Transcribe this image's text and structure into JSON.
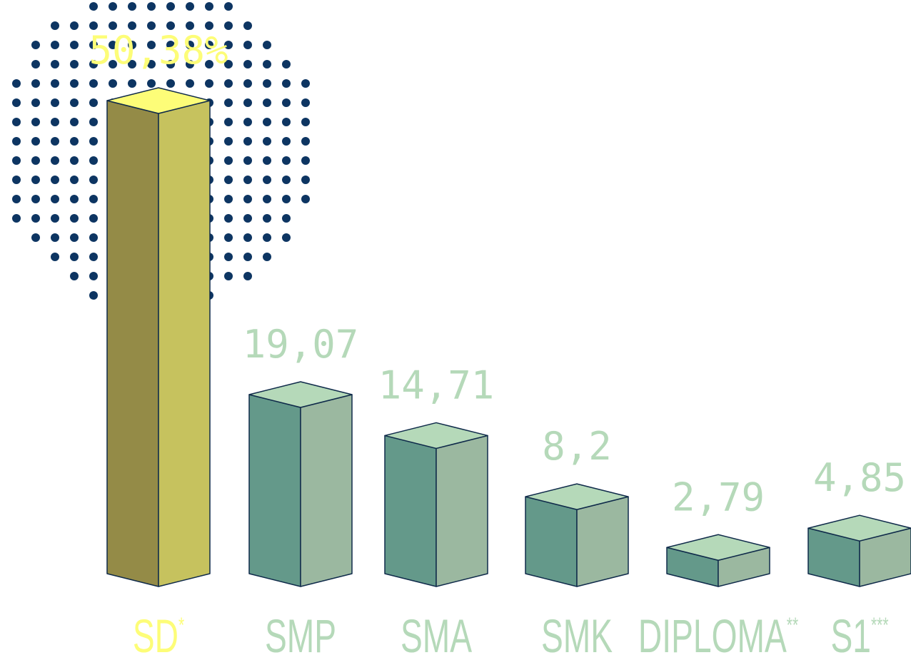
{
  "chart_data": {
    "type": "bar",
    "categories": [
      "SD",
      "SMP",
      "SMA",
      "SMK",
      "DIPLOMA",
      "S1"
    ],
    "category_marks": [
      "*",
      "",
      "",
      "",
      "**",
      "***"
    ],
    "values": [
      50.38,
      19.07,
      14.71,
      8.2,
      2.79,
      4.85
    ],
    "value_labels": [
      "50,38%",
      "19,07",
      "14,71",
      "8,2",
      "2,79",
      "4,85"
    ],
    "highlight_index": 0,
    "title": "",
    "xlabel": "",
    "ylabel": "",
    "ylim": [
      0,
      50.38
    ],
    "grid": false,
    "legend": "none"
  },
  "colors": {
    "highlight_front": "#948b47",
    "highlight_side": "#c6c25e",
    "highlight_top": "#fdfd78",
    "highlight_text": "#fdfd78",
    "bar_front": "#64998a",
    "bar_side": "#9bb8a0",
    "bar_top": "#b5d9b9",
    "bar_text": "#b5d9b9",
    "edge": "#0f2a4a",
    "dots": "#0d3562"
  }
}
